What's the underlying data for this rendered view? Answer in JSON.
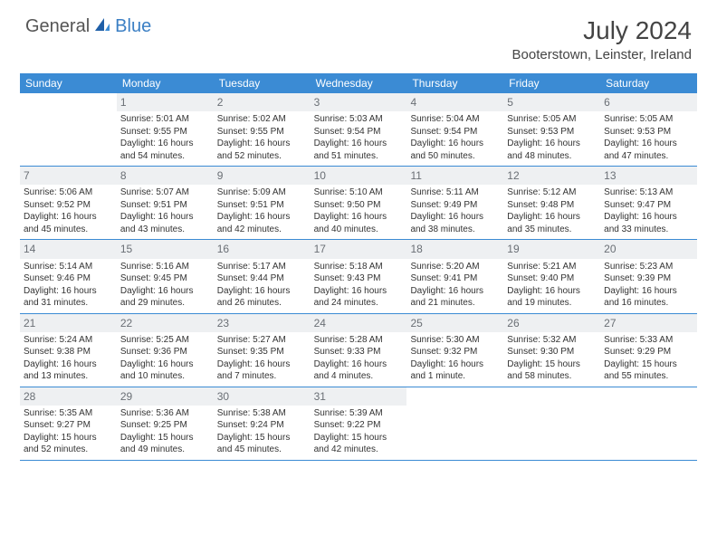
{
  "brand": {
    "part1": "General",
    "part2": "Blue"
  },
  "title": "July 2024",
  "location": "Booterstown, Leinster, Ireland",
  "header_bg": "#3b8bd4",
  "daynum_bg": "#eef0f2",
  "dow": [
    "Sunday",
    "Monday",
    "Tuesday",
    "Wednesday",
    "Thursday",
    "Friday",
    "Saturday"
  ],
  "weeks": [
    [
      {
        "n": "",
        "sunrise": "",
        "sunset": "",
        "daylight": ""
      },
      {
        "n": "1",
        "sunrise": "Sunrise: 5:01 AM",
        "sunset": "Sunset: 9:55 PM",
        "daylight": "Daylight: 16 hours and 54 minutes."
      },
      {
        "n": "2",
        "sunrise": "Sunrise: 5:02 AM",
        "sunset": "Sunset: 9:55 PM",
        "daylight": "Daylight: 16 hours and 52 minutes."
      },
      {
        "n": "3",
        "sunrise": "Sunrise: 5:03 AM",
        "sunset": "Sunset: 9:54 PM",
        "daylight": "Daylight: 16 hours and 51 minutes."
      },
      {
        "n": "4",
        "sunrise": "Sunrise: 5:04 AM",
        "sunset": "Sunset: 9:54 PM",
        "daylight": "Daylight: 16 hours and 50 minutes."
      },
      {
        "n": "5",
        "sunrise": "Sunrise: 5:05 AM",
        "sunset": "Sunset: 9:53 PM",
        "daylight": "Daylight: 16 hours and 48 minutes."
      },
      {
        "n": "6",
        "sunrise": "Sunrise: 5:05 AM",
        "sunset": "Sunset: 9:53 PM",
        "daylight": "Daylight: 16 hours and 47 minutes."
      }
    ],
    [
      {
        "n": "7",
        "sunrise": "Sunrise: 5:06 AM",
        "sunset": "Sunset: 9:52 PM",
        "daylight": "Daylight: 16 hours and 45 minutes."
      },
      {
        "n": "8",
        "sunrise": "Sunrise: 5:07 AM",
        "sunset": "Sunset: 9:51 PM",
        "daylight": "Daylight: 16 hours and 43 minutes."
      },
      {
        "n": "9",
        "sunrise": "Sunrise: 5:09 AM",
        "sunset": "Sunset: 9:51 PM",
        "daylight": "Daylight: 16 hours and 42 minutes."
      },
      {
        "n": "10",
        "sunrise": "Sunrise: 5:10 AM",
        "sunset": "Sunset: 9:50 PM",
        "daylight": "Daylight: 16 hours and 40 minutes."
      },
      {
        "n": "11",
        "sunrise": "Sunrise: 5:11 AM",
        "sunset": "Sunset: 9:49 PM",
        "daylight": "Daylight: 16 hours and 38 minutes."
      },
      {
        "n": "12",
        "sunrise": "Sunrise: 5:12 AM",
        "sunset": "Sunset: 9:48 PM",
        "daylight": "Daylight: 16 hours and 35 minutes."
      },
      {
        "n": "13",
        "sunrise": "Sunrise: 5:13 AM",
        "sunset": "Sunset: 9:47 PM",
        "daylight": "Daylight: 16 hours and 33 minutes."
      }
    ],
    [
      {
        "n": "14",
        "sunrise": "Sunrise: 5:14 AM",
        "sunset": "Sunset: 9:46 PM",
        "daylight": "Daylight: 16 hours and 31 minutes."
      },
      {
        "n": "15",
        "sunrise": "Sunrise: 5:16 AM",
        "sunset": "Sunset: 9:45 PM",
        "daylight": "Daylight: 16 hours and 29 minutes."
      },
      {
        "n": "16",
        "sunrise": "Sunrise: 5:17 AM",
        "sunset": "Sunset: 9:44 PM",
        "daylight": "Daylight: 16 hours and 26 minutes."
      },
      {
        "n": "17",
        "sunrise": "Sunrise: 5:18 AM",
        "sunset": "Sunset: 9:43 PM",
        "daylight": "Daylight: 16 hours and 24 minutes."
      },
      {
        "n": "18",
        "sunrise": "Sunrise: 5:20 AM",
        "sunset": "Sunset: 9:41 PM",
        "daylight": "Daylight: 16 hours and 21 minutes."
      },
      {
        "n": "19",
        "sunrise": "Sunrise: 5:21 AM",
        "sunset": "Sunset: 9:40 PM",
        "daylight": "Daylight: 16 hours and 19 minutes."
      },
      {
        "n": "20",
        "sunrise": "Sunrise: 5:23 AM",
        "sunset": "Sunset: 9:39 PM",
        "daylight": "Daylight: 16 hours and 16 minutes."
      }
    ],
    [
      {
        "n": "21",
        "sunrise": "Sunrise: 5:24 AM",
        "sunset": "Sunset: 9:38 PM",
        "daylight": "Daylight: 16 hours and 13 minutes."
      },
      {
        "n": "22",
        "sunrise": "Sunrise: 5:25 AM",
        "sunset": "Sunset: 9:36 PM",
        "daylight": "Daylight: 16 hours and 10 minutes."
      },
      {
        "n": "23",
        "sunrise": "Sunrise: 5:27 AM",
        "sunset": "Sunset: 9:35 PM",
        "daylight": "Daylight: 16 hours and 7 minutes."
      },
      {
        "n": "24",
        "sunrise": "Sunrise: 5:28 AM",
        "sunset": "Sunset: 9:33 PM",
        "daylight": "Daylight: 16 hours and 4 minutes."
      },
      {
        "n": "25",
        "sunrise": "Sunrise: 5:30 AM",
        "sunset": "Sunset: 9:32 PM",
        "daylight": "Daylight: 16 hours and 1 minute."
      },
      {
        "n": "26",
        "sunrise": "Sunrise: 5:32 AM",
        "sunset": "Sunset: 9:30 PM",
        "daylight": "Daylight: 15 hours and 58 minutes."
      },
      {
        "n": "27",
        "sunrise": "Sunrise: 5:33 AM",
        "sunset": "Sunset: 9:29 PM",
        "daylight": "Daylight: 15 hours and 55 minutes."
      }
    ],
    [
      {
        "n": "28",
        "sunrise": "Sunrise: 5:35 AM",
        "sunset": "Sunset: 9:27 PM",
        "daylight": "Daylight: 15 hours and 52 minutes."
      },
      {
        "n": "29",
        "sunrise": "Sunrise: 5:36 AM",
        "sunset": "Sunset: 9:25 PM",
        "daylight": "Daylight: 15 hours and 49 minutes."
      },
      {
        "n": "30",
        "sunrise": "Sunrise: 5:38 AM",
        "sunset": "Sunset: 9:24 PM",
        "daylight": "Daylight: 15 hours and 45 minutes."
      },
      {
        "n": "31",
        "sunrise": "Sunrise: 5:39 AM",
        "sunset": "Sunset: 9:22 PM",
        "daylight": "Daylight: 15 hours and 42 minutes."
      },
      {
        "n": "",
        "sunrise": "",
        "sunset": "",
        "daylight": ""
      },
      {
        "n": "",
        "sunrise": "",
        "sunset": "",
        "daylight": ""
      },
      {
        "n": "",
        "sunrise": "",
        "sunset": "",
        "daylight": ""
      }
    ]
  ]
}
